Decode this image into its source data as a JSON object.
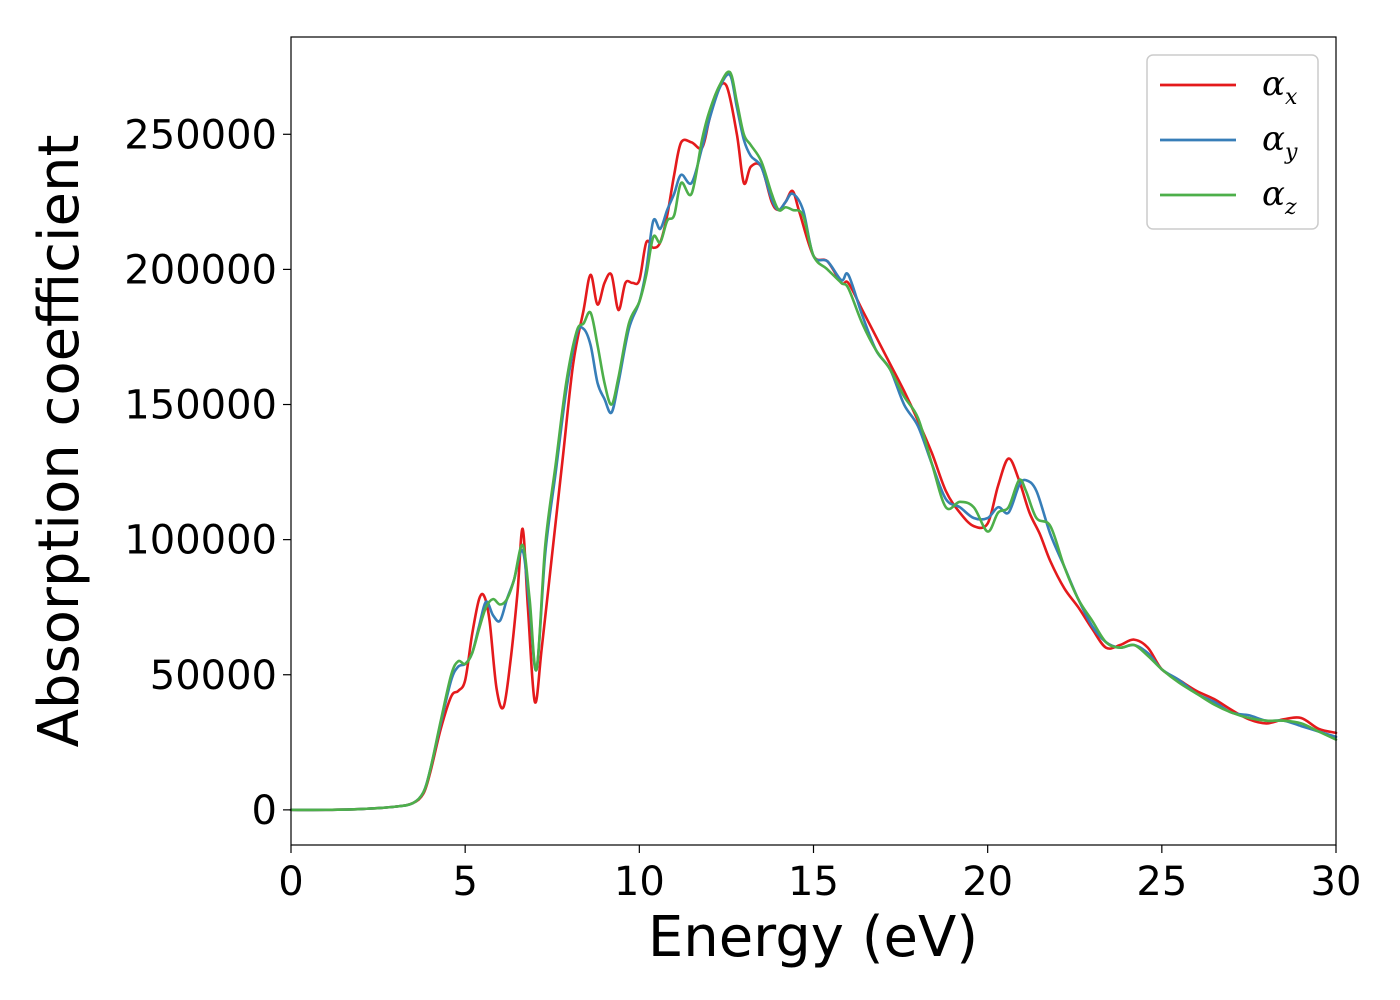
{
  "chart_data": {
    "type": "line",
    "xlabel": "Energy (eV)",
    "ylabel": "Absorption coefficient",
    "xlim": [
      0,
      30
    ],
    "ylim": [
      -13000,
      286000
    ],
    "xticks": [
      0,
      5,
      10,
      15,
      20,
      25,
      30
    ],
    "yticks": [
      0,
      50000,
      100000,
      150000,
      200000,
      250000
    ],
    "grid": false,
    "legend_position": "top-right",
    "series": [
      {
        "name": "α_x",
        "legend_base": "α",
        "legend_sub": "x",
        "color": "#e41a1c",
        "x": [
          0,
          1,
          2,
          3,
          3.5,
          3.8,
          4.0,
          4.3,
          4.6,
          4.8,
          5.0,
          5.2,
          5.4,
          5.55,
          5.7,
          5.9,
          6.1,
          6.3,
          6.5,
          6.65,
          6.8,
          7.0,
          7.2,
          7.5,
          7.8,
          8.1,
          8.4,
          8.6,
          8.8,
          9.0,
          9.2,
          9.4,
          9.6,
          9.8,
          10.0,
          10.2,
          10.4,
          10.6,
          10.8,
          11.0,
          11.2,
          11.5,
          11.8,
          12.0,
          12.2,
          12.5,
          12.8,
          13.0,
          13.2,
          13.5,
          13.8,
          14.0,
          14.2,
          14.4,
          14.6,
          15.0,
          15.4,
          15.8,
          16.0,
          16.4,
          16.8,
          17.2,
          17.6,
          18.0,
          18.4,
          18.8,
          19.2,
          19.6,
          20.0,
          20.3,
          20.6,
          20.9,
          21.2,
          21.5,
          21.8,
          22.2,
          22.6,
          23.0,
          23.4,
          23.8,
          24.2,
          24.6,
          25.0,
          25.5,
          26.0,
          26.5,
          27.0,
          27.5,
          28.0,
          28.5,
          29.0,
          29.5,
          30.0
        ],
        "y": [
          0,
          0,
          300,
          1200,
          2500,
          6000,
          14000,
          30000,
          42000,
          44000,
          48000,
          65000,
          78000,
          79000,
          70000,
          45000,
          38000,
          55000,
          80000,
          104000,
          75000,
          40000,
          60000,
          95000,
          130000,
          165000,
          185000,
          198000,
          187000,
          195000,
          198000,
          185000,
          195000,
          195000,
          196000,
          210000,
          208000,
          210000,
          220000,
          235000,
          247000,
          247000,
          245000,
          255000,
          265000,
          268000,
          250000,
          232000,
          238000,
          238000,
          225000,
          222000,
          225000,
          229000,
          221000,
          205000,
          203000,
          195000,
          195000,
          185000,
          175000,
          165000,
          155000,
          144000,
          132000,
          118000,
          110000,
          105000,
          106000,
          120000,
          130000,
          122000,
          110000,
          102000,
          92000,
          82000,
          75000,
          67000,
          60000,
          61000,
          63000,
          60000,
          52000,
          48000,
          44000,
          41000,
          37000,
          33500,
          32000,
          33500,
          34000,
          30000,
          28500
        ]
      },
      {
        "name": "α_y",
        "legend_base": "α",
        "legend_sub": "y",
        "color": "#377eb8",
        "x": [
          0,
          1,
          2,
          3,
          3.5,
          3.8,
          4.0,
          4.3,
          4.6,
          4.8,
          5.0,
          5.2,
          5.4,
          5.6,
          5.8,
          6.0,
          6.2,
          6.4,
          6.65,
          6.85,
          7.05,
          7.3,
          7.6,
          7.9,
          8.2,
          8.4,
          8.6,
          8.8,
          9.0,
          9.2,
          9.4,
          9.7,
          10.0,
          10.2,
          10.4,
          10.6,
          10.8,
          11.0,
          11.2,
          11.5,
          11.8,
          12.0,
          12.3,
          12.6,
          12.8,
          13.0,
          13.2,
          13.5,
          13.8,
          14.0,
          14.2,
          14.4,
          14.7,
          15.0,
          15.4,
          15.8,
          16.0,
          16.4,
          16.8,
          17.2,
          17.6,
          18.0,
          18.4,
          18.8,
          19.2,
          19.6,
          20.0,
          20.3,
          20.6,
          20.9,
          21.1,
          21.4,
          21.8,
          22.2,
          22.6,
          23.0,
          23.4,
          23.8,
          24.2,
          24.6,
          25.0,
          25.5,
          26.0,
          26.5,
          27.0,
          27.5,
          28.0,
          28.5,
          29.0,
          29.5,
          30.0
        ],
        "y": [
          0,
          0,
          300,
          1200,
          2500,
          6500,
          15000,
          32000,
          48000,
          53000,
          54000,
          58000,
          68000,
          77000,
          72000,
          70000,
          78000,
          85000,
          96000,
          75000,
          52000,
          95000,
          125000,
          155000,
          176000,
          178000,
          172000,
          158000,
          152000,
          147000,
          158000,
          178000,
          188000,
          200000,
          218000,
          215000,
          222000,
          228000,
          235000,
          232000,
          245000,
          255000,
          267000,
          272000,
          260000,
          248000,
          242000,
          238000,
          226000,
          222000,
          225000,
          228000,
          222000,
          205000,
          203000,
          196000,
          198000,
          183000,
          170000,
          163000,
          150000,
          142000,
          128000,
          115000,
          112000,
          108000,
          108000,
          112000,
          110000,
          120000,
          122000,
          118000,
          102000,
          90000,
          78000,
          68000,
          62000,
          60000,
          61000,
          58000,
          52000,
          48000,
          43000,
          40000,
          36000,
          35000,
          33000,
          33000,
          31000,
          29000,
          27000
        ]
      },
      {
        "name": "α_z",
        "legend_base": "α",
        "legend_sub": "z",
        "color": "#4daf4a",
        "x": [
          0,
          1,
          2,
          3,
          3.5,
          3.8,
          4.0,
          4.3,
          4.6,
          4.8,
          5.0,
          5.2,
          5.4,
          5.6,
          5.8,
          6.0,
          6.2,
          6.4,
          6.65,
          6.85,
          7.05,
          7.3,
          7.6,
          7.9,
          8.2,
          8.4,
          8.6,
          8.8,
          9.0,
          9.2,
          9.4,
          9.7,
          10.0,
          10.2,
          10.4,
          10.6,
          10.8,
          11.0,
          11.2,
          11.5,
          11.8,
          12.0,
          12.3,
          12.6,
          12.8,
          13.0,
          13.2,
          13.5,
          13.8,
          14.0,
          14.2,
          14.4,
          14.7,
          15.0,
          15.4,
          15.8,
          16.0,
          16.4,
          16.8,
          17.2,
          17.6,
          18.0,
          18.4,
          18.8,
          19.2,
          19.6,
          20.0,
          20.3,
          20.6,
          20.9,
          21.1,
          21.4,
          21.8,
          22.2,
          22.6,
          23.0,
          23.4,
          23.8,
          24.2,
          24.6,
          25.0,
          25.5,
          26.0,
          26.5,
          27.0,
          27.5,
          28.0,
          28.5,
          29.0,
          29.5,
          30.0
        ],
        "y": [
          0,
          0,
          300,
          1200,
          2500,
          6500,
          15000,
          33000,
          50000,
          55000,
          54000,
          58000,
          67000,
          75000,
          78000,
          76000,
          78000,
          85000,
          98000,
          78000,
          52000,
          98000,
          128000,
          158000,
          177000,
          180000,
          184000,
          172000,
          158000,
          150000,
          160000,
          180000,
          188000,
          198000,
          212000,
          210000,
          218000,
          220000,
          232000,
          228000,
          248000,
          258000,
          268000,
          273000,
          262000,
          250000,
          246000,
          240000,
          228000,
          222000,
          223000,
          222000,
          220000,
          205000,
          200000,
          195000,
          193000,
          180000,
          170000,
          163000,
          153000,
          145000,
          128000,
          112000,
          114000,
          112000,
          103000,
          110000,
          112000,
          122000,
          118000,
          108000,
          105000,
          90000,
          78000,
          70000,
          62000,
          60000,
          61000,
          57000,
          52000,
          47000,
          43000,
          39000,
          36000,
          34000,
          33000,
          33000,
          32000,
          29000,
          26000
        ]
      }
    ]
  }
}
